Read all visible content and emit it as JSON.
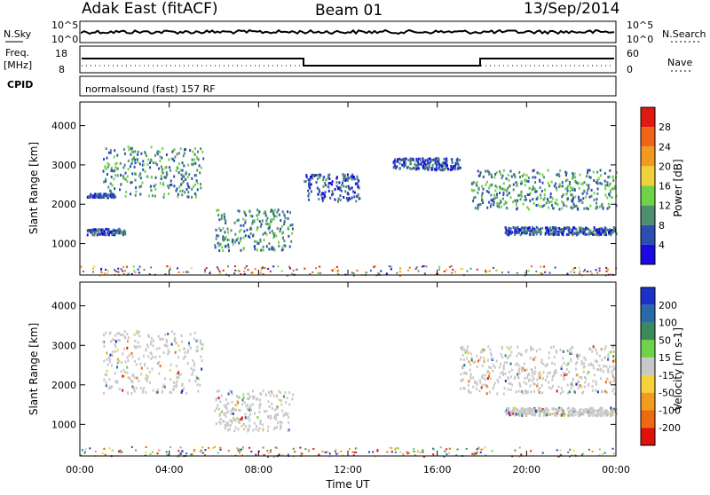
{
  "header": {
    "station": "Adak East (fitACF)",
    "beam": "Beam 01",
    "date": "13/Sep/2014"
  },
  "noise_panel": {
    "left_label": "N.Sky",
    "right_label": "N.Search",
    "tick_top": "10^5",
    "tick_bottom": "10^0"
  },
  "freq_panel": {
    "label_line1": "Freq.",
    "label_line2": "[MHz]",
    "right_label": "Nave",
    "left_ticks": [
      "18",
      "8"
    ],
    "right_ticks": [
      "60",
      "0"
    ]
  },
  "cpid_panel": {
    "label": "CPID",
    "text": "normalsound (fast) 157 RF"
  },
  "chart_data": [
    {
      "type": "heatmap",
      "title": "",
      "xlabel": "Time UT",
      "ylabel": "Slant Range [km]",
      "x_ticks": [
        "00:00",
        "04:00",
        "08:00",
        "12:00",
        "16:00",
        "20:00",
        "00:00"
      ],
      "y_ticks": [
        "1000",
        "2000",
        "3000",
        "4000"
      ],
      "ylim": [
        200,
        4600
      ],
      "colorbar": {
        "label": "Power [dB]",
        "ticks": [
          "4",
          "8",
          "12",
          "16",
          "20",
          "24",
          "28"
        ],
        "colors": [
          "#1a0ae0",
          "#2a4fb0",
          "#4f8e6f",
          "#6fd34a",
          "#f2d23a",
          "#f09a22",
          "#ef6417",
          "#e01a10"
        ]
      },
      "bands": [
        {
          "t_start": 0.3,
          "t_end": 1.5,
          "r_start": 2200,
          "r_end": 2300,
          "level": 1
        },
        {
          "t_start": 1.0,
          "t_end": 5.5,
          "r_start": 2200,
          "r_end": 3500,
          "level": 2
        },
        {
          "t_start": 0.3,
          "t_end": 2.0,
          "r_start": 1250,
          "r_end": 1400,
          "level": 1
        },
        {
          "t_start": 6.0,
          "t_end": 9.5,
          "r_start": 850,
          "r_end": 1900,
          "level": 2
        },
        {
          "t_start": 10.0,
          "t_end": 12.5,
          "r_start": 2100,
          "r_end": 2800,
          "level": 1
        },
        {
          "t_start": 14.0,
          "t_end": 17.0,
          "r_start": 2900,
          "r_end": 3200,
          "level": 1
        },
        {
          "t_start": 17.5,
          "t_end": 24.0,
          "r_start": 1900,
          "r_end": 2900,
          "level": 2
        },
        {
          "t_start": 19.0,
          "t_end": 24.0,
          "r_start": 1250,
          "r_end": 1450,
          "level": 1
        }
      ]
    },
    {
      "type": "heatmap",
      "title": "",
      "xlabel": "Time UT",
      "ylabel": "Slant Range [km]",
      "x_ticks": [
        "00:00",
        "04:00",
        "08:00",
        "12:00",
        "16:00",
        "20:00",
        "00:00"
      ],
      "y_ticks": [
        "1000",
        "2000",
        "3000",
        "4000"
      ],
      "ylim": [
        200,
        4600
      ],
      "colorbar": {
        "label": "Velocity [m s-1]",
        "ticks": [
          "200",
          "100",
          "50",
          "15",
          "-15",
          "-50",
          "-100",
          "-200"
        ],
        "colors": [
          "#1a32c8",
          "#2a6aa8",
          "#3b8a5c",
          "#6fd34a",
          "#c8c8c8",
          "#f5d23a",
          "#f29b1e",
          "#ee6a10",
          "#e0100c"
        ]
      },
      "bands": [
        {
          "t_start": 1.0,
          "t_end": 5.5,
          "r_start": 1800,
          "r_end": 3400,
          "level": 0
        },
        {
          "t_start": 6.0,
          "t_end": 9.5,
          "r_start": 850,
          "r_end": 1900,
          "level": 0
        },
        {
          "t_start": 17.0,
          "t_end": 24.0,
          "r_start": 1800,
          "r_end": 3000,
          "level": 0
        },
        {
          "t_start": 19.0,
          "t_end": 24.0,
          "r_start": 1250,
          "r_end": 1450,
          "level": 0
        }
      ]
    }
  ]
}
